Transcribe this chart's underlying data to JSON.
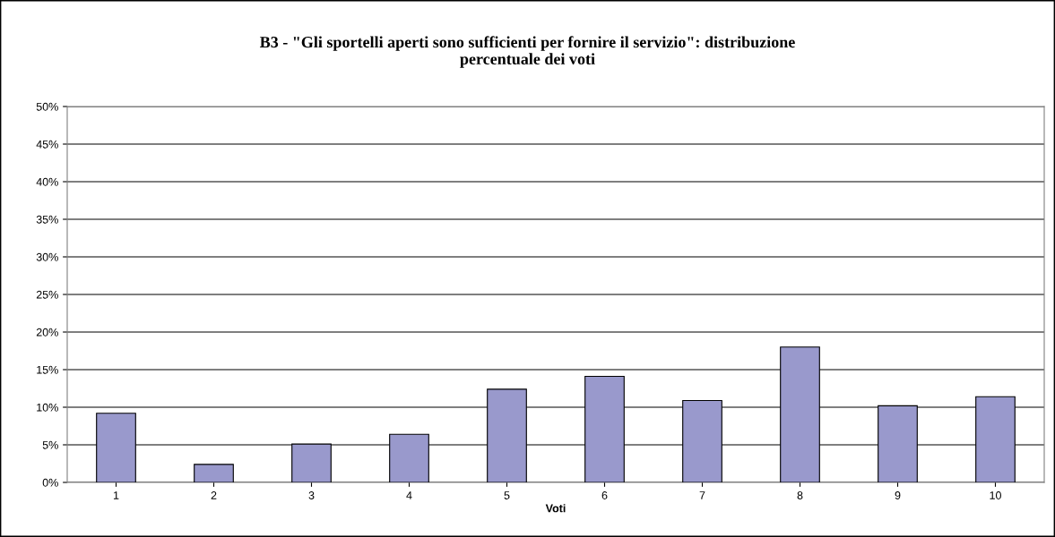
{
  "chart_data": {
    "type": "bar",
    "title": "B3 - \"Gli sportelli aperti sono sufficienti per fornire il servizio\": distribuzione\npercentuale dei voti",
    "xlabel": "Voti",
    "categories": [
      "1",
      "2",
      "3",
      "4",
      "5",
      "6",
      "7",
      "8",
      "9",
      "10"
    ],
    "values": [
      9.2,
      2.4,
      5.1,
      6.4,
      12.4,
      14.1,
      10.9,
      18.0,
      10.2,
      11.4
    ],
    "color": "#9999cc",
    "ylim": [
      0,
      50
    ],
    "yticks": [
      {
        "value": 0,
        "label": "0%"
      },
      {
        "value": 5,
        "label": "5%"
      },
      {
        "value": 10,
        "label": "10%"
      },
      {
        "value": 15,
        "label": "15%"
      },
      {
        "value": 20,
        "label": "20%"
      },
      {
        "value": 25,
        "label": "25%"
      },
      {
        "value": 30,
        "label": "30%"
      },
      {
        "value": 35,
        "label": "35%"
      },
      {
        "value": 40,
        "label": "40%"
      },
      {
        "value": 45,
        "label": "45%"
      },
      {
        "value": 50,
        "label": "50%"
      }
    ],
    "grid": "y",
    "legend": false
  }
}
